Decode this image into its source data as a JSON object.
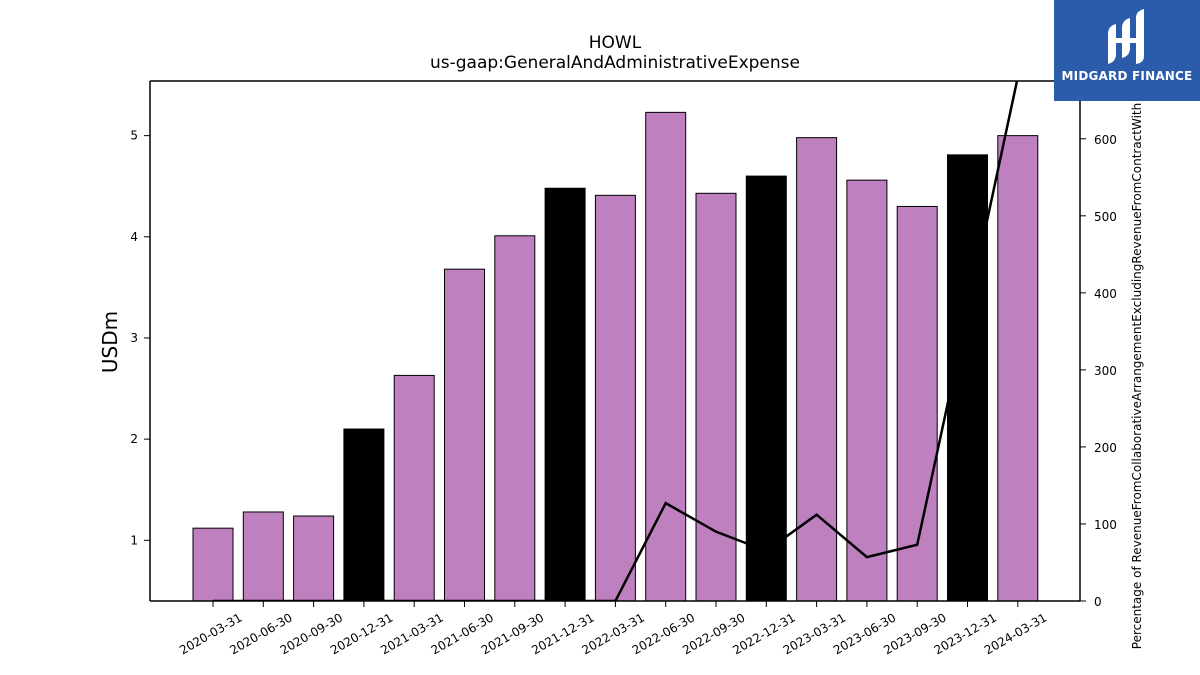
{
  "chart_data": {
    "type": "bar",
    "title": "HOWL",
    "subtitle": "us-gaap:GeneralAndAdministrativeExpense",
    "ylabel": "USDm",
    "ylabel_right": "Percentage of RevenueFromCollaborativeArrangementExcludingRevenueFromContractWith",
    "categories": [
      "2020-03-31",
      "2020-06-30",
      "2020-09-30",
      "2020-12-31",
      "2021-03-31",
      "2021-06-30",
      "2021-09-30",
      "2021-12-31",
      "2022-03-31",
      "2022-06-30",
      "2022-09-30",
      "2022-12-31",
      "2023-03-31",
      "2023-06-30",
      "2023-09-30",
      "2023-12-31",
      "2024-03-31"
    ],
    "values": [
      1.12,
      1.28,
      1.24,
      2.1,
      2.63,
      3.68,
      4.01,
      4.48,
      4.41,
      5.23,
      4.43,
      4.6,
      4.98,
      4.56,
      4.3,
      4.81,
      5.0
    ],
    "bar_colors": [
      "#bf80bf",
      "#bf80bf",
      "#bf80bf",
      "#000000",
      "#bf80bf",
      "#bf80bf",
      "#bf80bf",
      "#000000",
      "#bf80bf",
      "#bf80bf",
      "#bf80bf",
      "#000000",
      "#bf80bf",
      "#bf80bf",
      "#bf80bf",
      "#000000",
      "#bf80bf"
    ],
    "line_values": [
      0,
      0,
      0,
      0,
      0,
      0,
      0,
      0,
      0,
      127,
      90,
      65,
      112,
      57,
      73,
      375,
      680
    ],
    "line_color": "#000000",
    "ylim": [
      0.4,
      5.54
    ],
    "yticks": [
      1,
      2,
      3,
      4,
      5
    ],
    "ylim_right": [
      0,
      675
    ],
    "yticks_right": [
      0,
      100,
      200,
      300,
      400,
      500,
      600
    ],
    "grid": false
  },
  "logo": {
    "text": "MIDGARD FINANCE"
  }
}
